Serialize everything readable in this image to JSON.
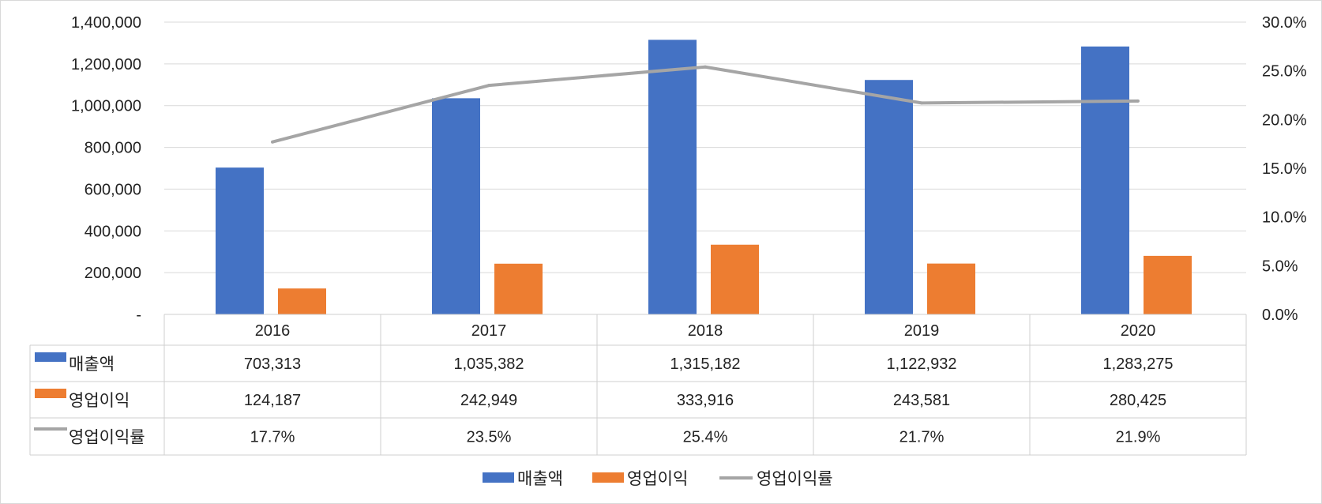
{
  "chart_data": {
    "type": "bar",
    "categories": [
      "2016",
      "2017",
      "2018",
      "2019",
      "2020"
    ],
    "series": [
      {
        "name": "매출액",
        "kind": "bar",
        "axis": "left",
        "color": "#4472C4",
        "values": [
          703313,
          1035382,
          1315182,
          1122932,
          1283275
        ],
        "labels": [
          "703,313",
          "1,035,382",
          "1,315,182",
          "1,122,932",
          "1,283,275"
        ]
      },
      {
        "name": "영업이익",
        "kind": "bar",
        "axis": "left",
        "color": "#ED7D31",
        "values": [
          124187,
          242949,
          333916,
          243581,
          280425
        ],
        "labels": [
          "124,187",
          "242,949",
          "333,916",
          "243,581",
          "280,425"
        ]
      },
      {
        "name": "영업이익률",
        "kind": "line",
        "axis": "right",
        "color": "#A5A5A5",
        "values": [
          17.7,
          23.5,
          25.4,
          21.7,
          21.9
        ],
        "labels": [
          "17.7%",
          "23.5%",
          "25.4%",
          "21.7%",
          "21.9%"
        ]
      }
    ],
    "y_left": {
      "lim": [
        0,
        1400000
      ],
      "ticks": [
        0,
        200000,
        400000,
        600000,
        800000,
        1000000,
        1200000,
        1400000
      ],
      "tick_labels": [
        "-",
        "200,000",
        "400,000",
        "600,000",
        "800,000",
        "1,000,000",
        "1,200,000",
        "1,400,000"
      ]
    },
    "y_right": {
      "lim": [
        0,
        30
      ],
      "ticks": [
        0,
        5,
        10,
        15,
        20,
        25,
        30
      ],
      "tick_labels": [
        "0.0%",
        "5.0%",
        "10.0%",
        "15.0%",
        "20.0%",
        "25.0%",
        "30.0%"
      ]
    },
    "grid": true,
    "legend_position": "bottom",
    "data_table": true
  }
}
